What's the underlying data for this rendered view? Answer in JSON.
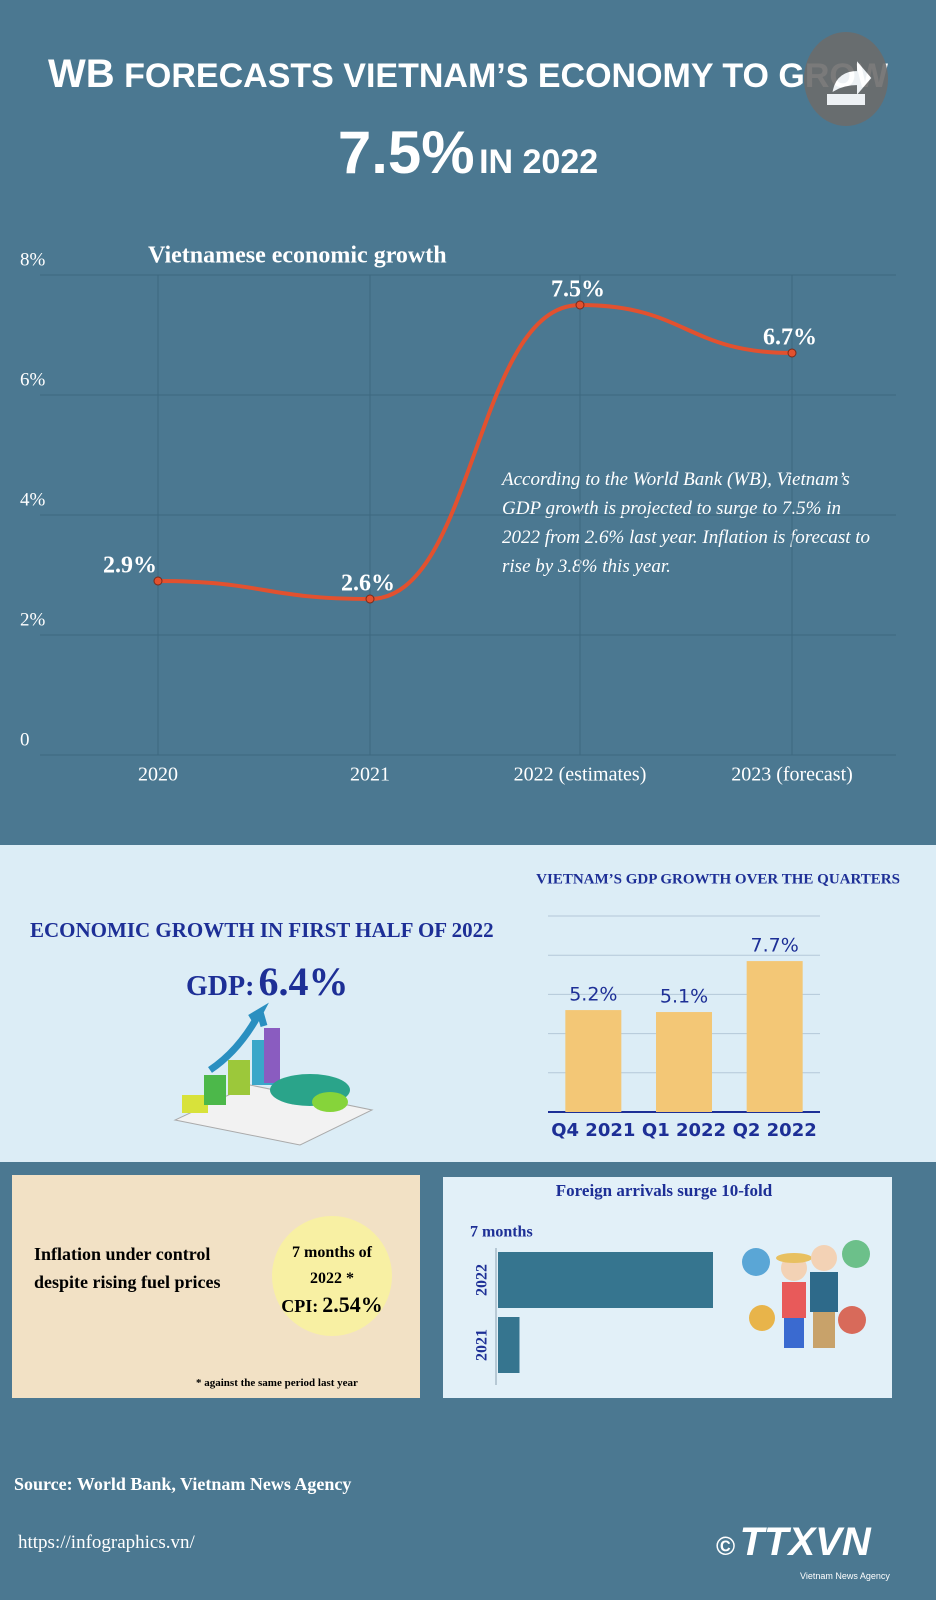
{
  "header": {
    "title_prefix": "WB",
    "title": "FORECASTS VIETNAM’S ECONOMY TO GROW",
    "big": "7.5%",
    "big_suffix": "IN 2022"
  },
  "chart_data": [
    {
      "type": "line",
      "title": "Vietnamese economic growth",
      "categories": [
        "2020",
        "2021",
        "2022 (estimates)",
        "2023 (forecast)"
      ],
      "values": [
        2.9,
        2.6,
        7.5,
        6.7
      ],
      "value_labels": [
        "2.9%",
        "2.6%",
        "7.5%",
        "6.7%"
      ],
      "color": "#e2512f",
      "ylim": [
        0,
        8
      ],
      "yticks": [
        0,
        {
          "value": 2,
          "label": "2%"
        },
        {
          "value": 4,
          "label": "4%"
        },
        {
          "value": 6,
          "label": "6%"
        },
        {
          "value": 8,
          "label": "8%"
        }
      ],
      "grid": true,
      "annotation": "According to the World Bank (WB), Vietnam’s GDP growth is projected to surge to 7.5% in 2022 from 2.6% last year. Inflation is forecast to rise by 3.8% this year."
    },
    {
      "type": "bar",
      "title": "VIETNAM’S GDP GROWTH OVER THE QUARTERS",
      "categories": [
        "Q4 2021",
        "Q1 2022",
        "Q2 2022"
      ],
      "values": [
        5.2,
        5.1,
        7.7
      ],
      "value_labels": [
        "5.2%",
        "5.1%",
        "7.7%"
      ],
      "color": "#f3c776",
      "ylim": [
        0,
        10
      ],
      "yticks": [
        0,
        2,
        4,
        6,
        8,
        10
      ],
      "grid": true
    },
    {
      "type": "hbar",
      "title": "Foreign arrivals surge 10-fold",
      "subtitle": "7 months",
      "categories": [
        "2022",
        "2021"
      ],
      "values": [
        10,
        1
      ],
      "color": "#36758f"
    }
  ],
  "gdp_panel": {
    "title": "ECONOMIC GROWTH IN FIRST HALF OF 2022",
    "label": "GDP:",
    "value": "6.4%"
  },
  "inflation": {
    "text": "Inflation under control despite rising fuel prices",
    "circle_line": "7 months of 2022 *",
    "cpi_label": "CPI:",
    "cpi_value": "2.54%",
    "note": "* against the same period last year"
  },
  "footer": {
    "source": "Source: World Bank, Vietnam News Agency",
    "url": "https://infographics.vn/",
    "copyright": "©",
    "logo": "TTXVN",
    "logo_sub": "Vietnam News Agency"
  }
}
